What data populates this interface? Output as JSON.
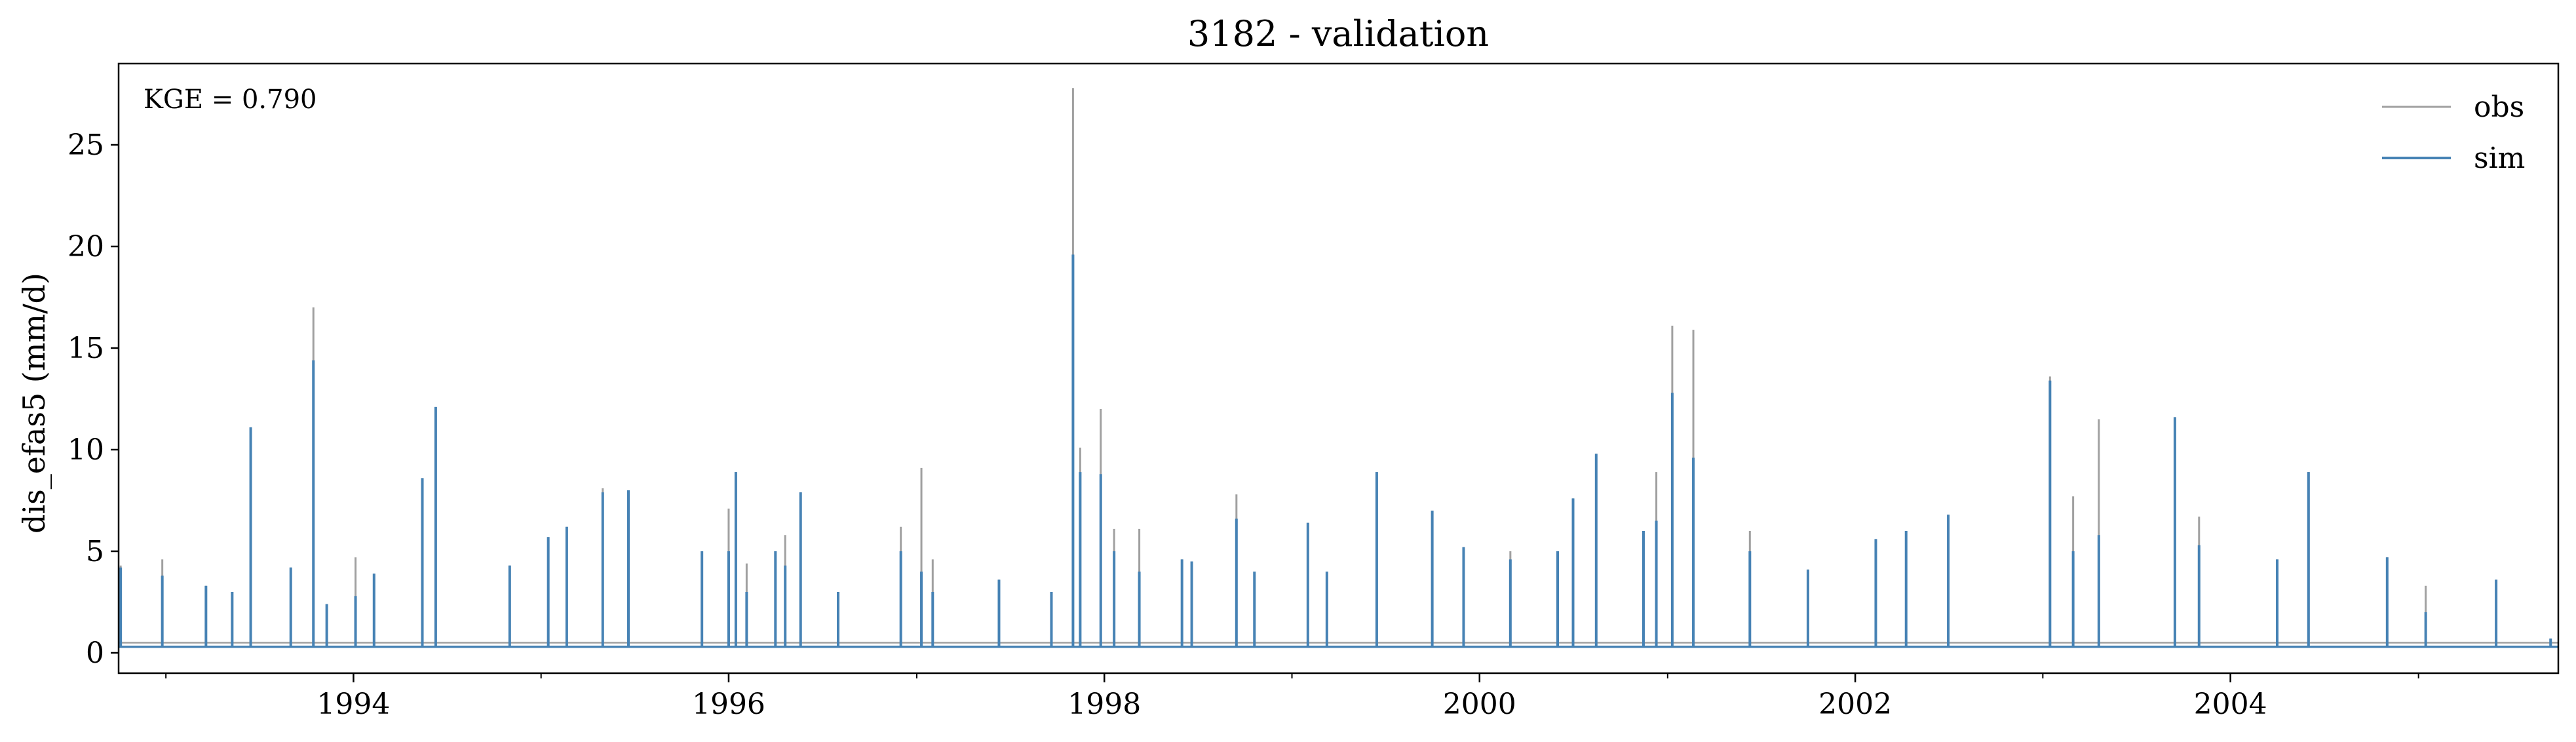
{
  "chart_data": {
    "type": "line",
    "title": "3182 - validation",
    "xlabel": "",
    "ylabel": "dis_efas5 (mm/d)",
    "annotation": "KGE = 0.790",
    "x_range": [
      "1992-10-01",
      "2005-09-30"
    ],
    "x_major_ticks": [
      "1994",
      "1996",
      "1998",
      "2000",
      "2002",
      "2004"
    ],
    "ylim": [
      -1,
      29
    ],
    "y_ticks": [
      0,
      5,
      10,
      15,
      20,
      25
    ],
    "grid": false,
    "legend_position": "top-right",
    "baseflow": {
      "obs": 0.5,
      "sim": 0.3
    },
    "series": [
      {
        "name": "obs",
        "color": "#a0a0a0",
        "peaks": [
          [
            "1992-10-05",
            4.3
          ],
          [
            "1992-12-25",
            4.6
          ],
          [
            "1993-03-20",
            3.3
          ],
          [
            "1993-05-10",
            3.0
          ],
          [
            "1993-06-15",
            11.1
          ],
          [
            "1993-09-01",
            4.2
          ],
          [
            "1993-10-15",
            17.0
          ],
          [
            "1993-11-10",
            2.4
          ],
          [
            "1994-01-05",
            4.7
          ],
          [
            "1994-02-10",
            3.9
          ],
          [
            "1994-05-15",
            8.6
          ],
          [
            "1994-06-10",
            12.1
          ],
          [
            "1994-11-01",
            4.3
          ],
          [
            "1995-01-15",
            5.7
          ],
          [
            "1995-02-20",
            6.2
          ],
          [
            "1995-05-01",
            8.1
          ],
          [
            "1995-06-20",
            8.0
          ],
          [
            "1995-11-10",
            5.0
          ],
          [
            "1996-01-01",
            7.1
          ],
          [
            "1996-01-15",
            8.9
          ],
          [
            "1996-02-05",
            4.4
          ],
          [
            "1996-04-01",
            5.0
          ],
          [
            "1996-04-20",
            5.8
          ],
          [
            "1996-05-20",
            7.9
          ],
          [
            "1996-08-01",
            3.0
          ],
          [
            "1996-12-01",
            6.2
          ],
          [
            "1997-01-10",
            9.1
          ],
          [
            "1997-02-01",
            4.6
          ],
          [
            "1997-06-10",
            3.6
          ],
          [
            "1997-09-20",
            3.0
          ],
          [
            "1997-11-01",
            27.8
          ],
          [
            "1997-11-15",
            10.1
          ],
          [
            "1997-12-25",
            12.0
          ],
          [
            "1998-01-20",
            6.1
          ],
          [
            "1998-03-10",
            6.1
          ],
          [
            "1998-06-01",
            4.6
          ],
          [
            "1998-06-20",
            4.5
          ],
          [
            "1998-09-15",
            7.8
          ],
          [
            "1998-10-20",
            4.0
          ],
          [
            "1999-02-01",
            6.4
          ],
          [
            "1999-03-10",
            4.0
          ],
          [
            "1999-06-15",
            8.9
          ],
          [
            "1999-10-01",
            7.0
          ],
          [
            "1999-12-01",
            5.2
          ],
          [
            "2000-03-01",
            5.0
          ],
          [
            "2000-06-01",
            5.0
          ],
          [
            "2000-07-01",
            7.6
          ],
          [
            "2000-08-15",
            9.8
          ],
          [
            "2000-11-15",
            6.0
          ],
          [
            "2000-12-10",
            8.9
          ],
          [
            "2001-01-10",
            16.1
          ],
          [
            "2001-02-20",
            15.9
          ],
          [
            "2001-06-10",
            6.0
          ],
          [
            "2001-10-01",
            4.1
          ],
          [
            "2002-02-10",
            5.6
          ],
          [
            "2002-04-10",
            6.0
          ],
          [
            "2002-07-01",
            6.8
          ],
          [
            "2003-01-15",
            13.6
          ],
          [
            "2003-03-01",
            7.7
          ],
          [
            "2003-04-20",
            11.5
          ],
          [
            "2003-09-15",
            11.6
          ],
          [
            "2003-11-01",
            6.7
          ],
          [
            "2004-04-01",
            4.6
          ],
          [
            "2004-06-01",
            8.9
          ],
          [
            "2004-11-01",
            4.7
          ],
          [
            "2005-01-15",
            3.3
          ],
          [
            "2005-06-01",
            3.6
          ],
          [
            "2005-09-15",
            0.7
          ]
        ]
      },
      {
        "name": "sim",
        "color": "#4682b4",
        "peaks": [
          [
            "1992-10-05",
            4.2
          ],
          [
            "1992-12-25",
            3.8
          ],
          [
            "1993-03-20",
            3.3
          ],
          [
            "1993-05-10",
            3.0
          ],
          [
            "1993-06-15",
            11.1
          ],
          [
            "1993-09-01",
            4.2
          ],
          [
            "1993-10-15",
            14.4
          ],
          [
            "1993-11-10",
            2.4
          ],
          [
            "1994-01-05",
            2.8
          ],
          [
            "1994-02-10",
            3.9
          ],
          [
            "1994-05-15",
            8.6
          ],
          [
            "1994-06-10",
            12.1
          ],
          [
            "1994-11-01",
            4.3
          ],
          [
            "1995-01-15",
            5.7
          ],
          [
            "1995-02-20",
            6.2
          ],
          [
            "1995-05-01",
            7.9
          ],
          [
            "1995-06-20",
            8.0
          ],
          [
            "1995-11-10",
            5.0
          ],
          [
            "1996-01-01",
            5.0
          ],
          [
            "1996-01-15",
            8.9
          ],
          [
            "1996-02-05",
            3.0
          ],
          [
            "1996-04-01",
            5.0
          ],
          [
            "1996-04-20",
            4.3
          ],
          [
            "1996-05-20",
            7.9
          ],
          [
            "1996-08-01",
            3.0
          ],
          [
            "1996-12-01",
            5.0
          ],
          [
            "1997-01-10",
            4.0
          ],
          [
            "1997-02-01",
            3.0
          ],
          [
            "1997-06-10",
            3.6
          ],
          [
            "1997-09-20",
            3.0
          ],
          [
            "1997-11-01",
            19.6
          ],
          [
            "1997-11-15",
            8.9
          ],
          [
            "1997-12-25",
            8.8
          ],
          [
            "1998-01-20",
            5.0
          ],
          [
            "1998-03-10",
            4.0
          ],
          [
            "1998-06-01",
            4.6
          ],
          [
            "1998-06-20",
            4.5
          ],
          [
            "1998-09-15",
            6.6
          ],
          [
            "1998-10-20",
            4.0
          ],
          [
            "1999-02-01",
            6.4
          ],
          [
            "1999-03-10",
            4.0
          ],
          [
            "1999-06-15",
            8.9
          ],
          [
            "1999-10-01",
            7.0
          ],
          [
            "1999-12-01",
            5.2
          ],
          [
            "2000-03-01",
            4.6
          ],
          [
            "2000-06-01",
            5.0
          ],
          [
            "2000-07-01",
            7.6
          ],
          [
            "2000-08-15",
            9.8
          ],
          [
            "2000-11-15",
            6.0
          ],
          [
            "2000-12-10",
            6.5
          ],
          [
            "2001-01-10",
            12.8
          ],
          [
            "2001-02-20",
            9.6
          ],
          [
            "2001-06-10",
            5.0
          ],
          [
            "2001-10-01",
            4.1
          ],
          [
            "2002-02-10",
            5.6
          ],
          [
            "2002-04-10",
            6.0
          ],
          [
            "2002-07-01",
            6.8
          ],
          [
            "2003-01-15",
            13.4
          ],
          [
            "2003-03-01",
            5.0
          ],
          [
            "2003-04-20",
            5.8
          ],
          [
            "2003-09-15",
            11.6
          ],
          [
            "2003-11-01",
            5.3
          ],
          [
            "2004-04-01",
            4.6
          ],
          [
            "2004-06-01",
            8.9
          ],
          [
            "2004-11-01",
            4.7
          ],
          [
            "2005-01-15",
            2.0
          ],
          [
            "2005-06-01",
            3.6
          ],
          [
            "2005-09-15",
            0.7
          ]
        ]
      }
    ]
  }
}
